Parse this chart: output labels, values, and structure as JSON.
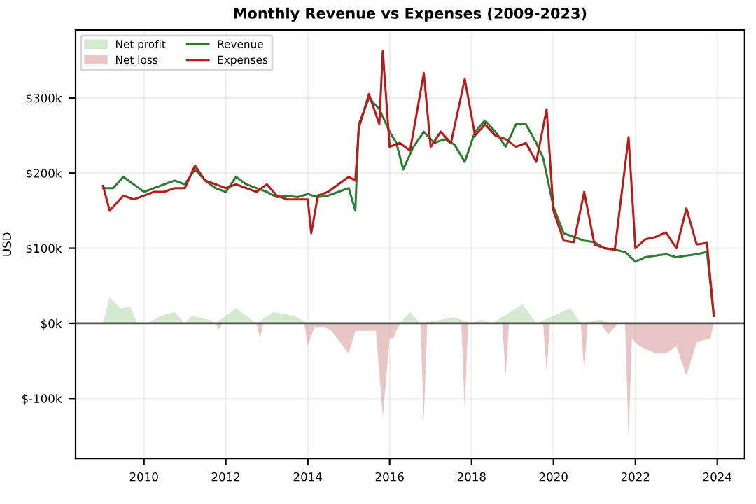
{
  "chart_data": {
    "type": "line",
    "title": "Monthly Revenue vs Expenses (2009-2023)",
    "ylabel": "USD",
    "xlim": [
      "2008-05",
      "2024-09"
    ],
    "xticks": [
      {
        "value": "2010",
        "label": "2010"
      },
      {
        "value": "2012",
        "label": "2012"
      },
      {
        "value": "2014",
        "label": "2014"
      },
      {
        "value": "2016",
        "label": "2016"
      },
      {
        "value": "2018",
        "label": "2018"
      },
      {
        "value": "2020",
        "label": "2020"
      },
      {
        "value": "2022",
        "label": "2022"
      },
      {
        "value": "2024",
        "label": "2024"
      }
    ],
    "ylim": [
      -180000,
      390000
    ],
    "yticks": [
      {
        "value": -100000,
        "label": "$-100k"
      },
      {
        "value": 0,
        "label": "$0k"
      },
      {
        "value": 100000,
        "label": "$100k"
      },
      {
        "value": 200000,
        "label": "$200k"
      },
      {
        "value": 300000,
        "label": "$300k"
      }
    ],
    "grid": true,
    "legend": "top left",
    "ref_lines": [
      {
        "axis": "y",
        "value": 0,
        "color": "#555555"
      }
    ],
    "series": [
      {
        "name": "Net profit",
        "type": "area",
        "color": "#d5e8d0",
        "x": [
          "2009-01",
          "2009-03",
          "2009-06",
          "2009-09",
          "2009-11",
          "2010-02",
          "2010-06",
          "2010-10",
          "2011-01",
          "2011-03",
          "2011-08",
          "2011-10",
          "2012-04",
          "2012-07",
          "2012-10",
          "2013-03",
          "2013-09",
          "2014-01",
          "2016-04",
          "2016-07",
          "2016-10",
          "2017-08",
          "2018-01",
          "2018-04",
          "2018-07",
          "2019-04",
          "2019-08",
          "2020-06",
          "2020-09",
          "2021-03",
          "2021-06"
        ],
        "values": [
          0,
          35000,
          20000,
          22000,
          0,
          0,
          10000,
          15000,
          0,
          10000,
          5000,
          0,
          20000,
          10000,
          0,
          15000,
          10000,
          0,
          0,
          15000,
          0,
          8000,
          0,
          5000,
          0,
          25000,
          0,
          20000,
          0,
          5000,
          0
        ]
      },
      {
        "name": "Net loss",
        "type": "area",
        "color": "#e8c6c6",
        "x": [
          "2011-10",
          "2011-11",
          "2011-12",
          "2012-10",
          "2012-11",
          "2012-12",
          "2013-12",
          "2014-01",
          "2014-03",
          "2014-06",
          "2014-08",
          "2015-01",
          "2015-03",
          "2015-09",
          "2015-11",
          "2016-01",
          "2016-02",
          "2016-04",
          "2016-10",
          "2016-11",
          "2016-12",
          "2017-10",
          "2017-11",
          "2017-12",
          "2018-10",
          "2018-11",
          "2018-12",
          "2019-10",
          "2019-11",
          "2019-12",
          "2020-09",
          "2020-10",
          "2020-11",
          "2021-03",
          "2021-05",
          "2021-08",
          "2021-10",
          "2021-11",
          "2021-12",
          "2022-02",
          "2022-07",
          "2022-10",
          "2023-01",
          "2023-04",
          "2023-07",
          "2023-11",
          "2023-12"
        ],
        "values": [
          0,
          -8000,
          0,
          0,
          -20000,
          0,
          0,
          -30000,
          -5000,
          -5000,
          -10000,
          -40000,
          -10000,
          -10000,
          -125000,
          -20000,
          -20000,
          0,
          0,
          -130000,
          0,
          0,
          -115000,
          0,
          0,
          -70000,
          0,
          0,
          -65000,
          0,
          0,
          -65000,
          0,
          0,
          -15000,
          0,
          0,
          -155000,
          -20000,
          -30000,
          -40000,
          -40000,
          -30000,
          -70000,
          -25000,
          -20000,
          0
        ]
      },
      {
        "name": "Revenue",
        "color": "#2e7d32",
        "x": [
          "2009-01",
          "2009-04",
          "2009-07",
          "2009-10",
          "2010-01",
          "2010-04",
          "2010-07",
          "2010-10",
          "2011-01",
          "2011-04",
          "2011-07",
          "2011-10",
          "2012-01",
          "2012-04",
          "2012-07",
          "2012-10",
          "2013-01",
          "2013-04",
          "2013-07",
          "2013-10",
          "2014-01",
          "2014-04",
          "2014-07",
          "2014-10",
          "2015-01",
          "2015-03",
          "2015-04",
          "2015-07",
          "2015-10",
          "2016-01",
          "2016-03",
          "2016-05",
          "2016-08",
          "2016-11",
          "2017-02",
          "2017-05",
          "2017-08",
          "2017-11",
          "2018-02",
          "2018-05",
          "2018-08",
          "2018-11",
          "2019-02",
          "2019-05",
          "2019-08",
          "2019-10",
          "2020-01",
          "2020-04",
          "2020-07",
          "2020-10",
          "2021-01",
          "2021-04",
          "2021-07",
          "2021-10",
          "2022-01",
          "2022-04",
          "2022-07",
          "2022-10",
          "2023-01",
          "2023-04",
          "2023-07",
          "2023-10",
          "2023-12"
        ],
        "values": [
          180000,
          180000,
          195000,
          185000,
          175000,
          180000,
          185000,
          190000,
          185000,
          205000,
          190000,
          180000,
          175000,
          195000,
          185000,
          180000,
          175000,
          168000,
          170000,
          168000,
          172000,
          168000,
          170000,
          175000,
          180000,
          150000,
          265000,
          300000,
          285000,
          255000,
          240000,
          205000,
          235000,
          255000,
          240000,
          245000,
          238000,
          215000,
          255000,
          270000,
          255000,
          235000,
          265000,
          265000,
          240000,
          220000,
          155000,
          120000,
          115000,
          110000,
          108000,
          100000,
          98000,
          95000,
          82000,
          88000,
          90000,
          92000,
          88000,
          90000,
          92000,
          95000,
          10000
        ]
      },
      {
        "name": "Expenses",
        "color": "#b71c1c",
        "x": [
          "2009-01",
          "2009-03",
          "2009-07",
          "2009-10",
          "2010-01",
          "2010-04",
          "2010-07",
          "2010-10",
          "2011-01",
          "2011-04",
          "2011-07",
          "2011-10",
          "2012-01",
          "2012-04",
          "2012-07",
          "2012-10",
          "2013-01",
          "2013-04",
          "2013-07",
          "2013-10",
          "2014-01",
          "2014-02",
          "2014-04",
          "2014-07",
          "2014-10",
          "2015-01",
          "2015-03",
          "2015-04",
          "2015-07",
          "2015-10",
          "2015-11",
          "2016-01",
          "2016-04",
          "2016-07",
          "2016-11",
          "2017-01",
          "2017-04",
          "2017-07",
          "2017-11",
          "2018-02",
          "2018-05",
          "2018-08",
          "2018-11",
          "2019-02",
          "2019-05",
          "2019-08",
          "2019-11",
          "2020-01",
          "2020-04",
          "2020-07",
          "2020-10",
          "2021-01",
          "2021-04",
          "2021-07",
          "2021-11",
          "2022-01",
          "2022-04",
          "2022-07",
          "2022-10",
          "2023-01",
          "2023-04",
          "2023-07",
          "2023-10",
          "2023-12"
        ],
        "values": [
          183000,
          150000,
          170000,
          165000,
          170000,
          175000,
          175000,
          180000,
          180000,
          210000,
          190000,
          185000,
          180000,
          185000,
          180000,
          175000,
          185000,
          170000,
          165000,
          165000,
          165000,
          120000,
          170000,
          175000,
          185000,
          195000,
          190000,
          260000,
          305000,
          265000,
          362000,
          235000,
          240000,
          230000,
          333000,
          235000,
          255000,
          240000,
          325000,
          250000,
          265000,
          250000,
          245000,
          235000,
          240000,
          215000,
          285000,
          150000,
          110000,
          108000,
          175000,
          105000,
          100000,
          98000,
          248000,
          100000,
          112000,
          115000,
          121000,
          100000,
          153000,
          105000,
          107000,
          10000
        ]
      }
    ]
  }
}
